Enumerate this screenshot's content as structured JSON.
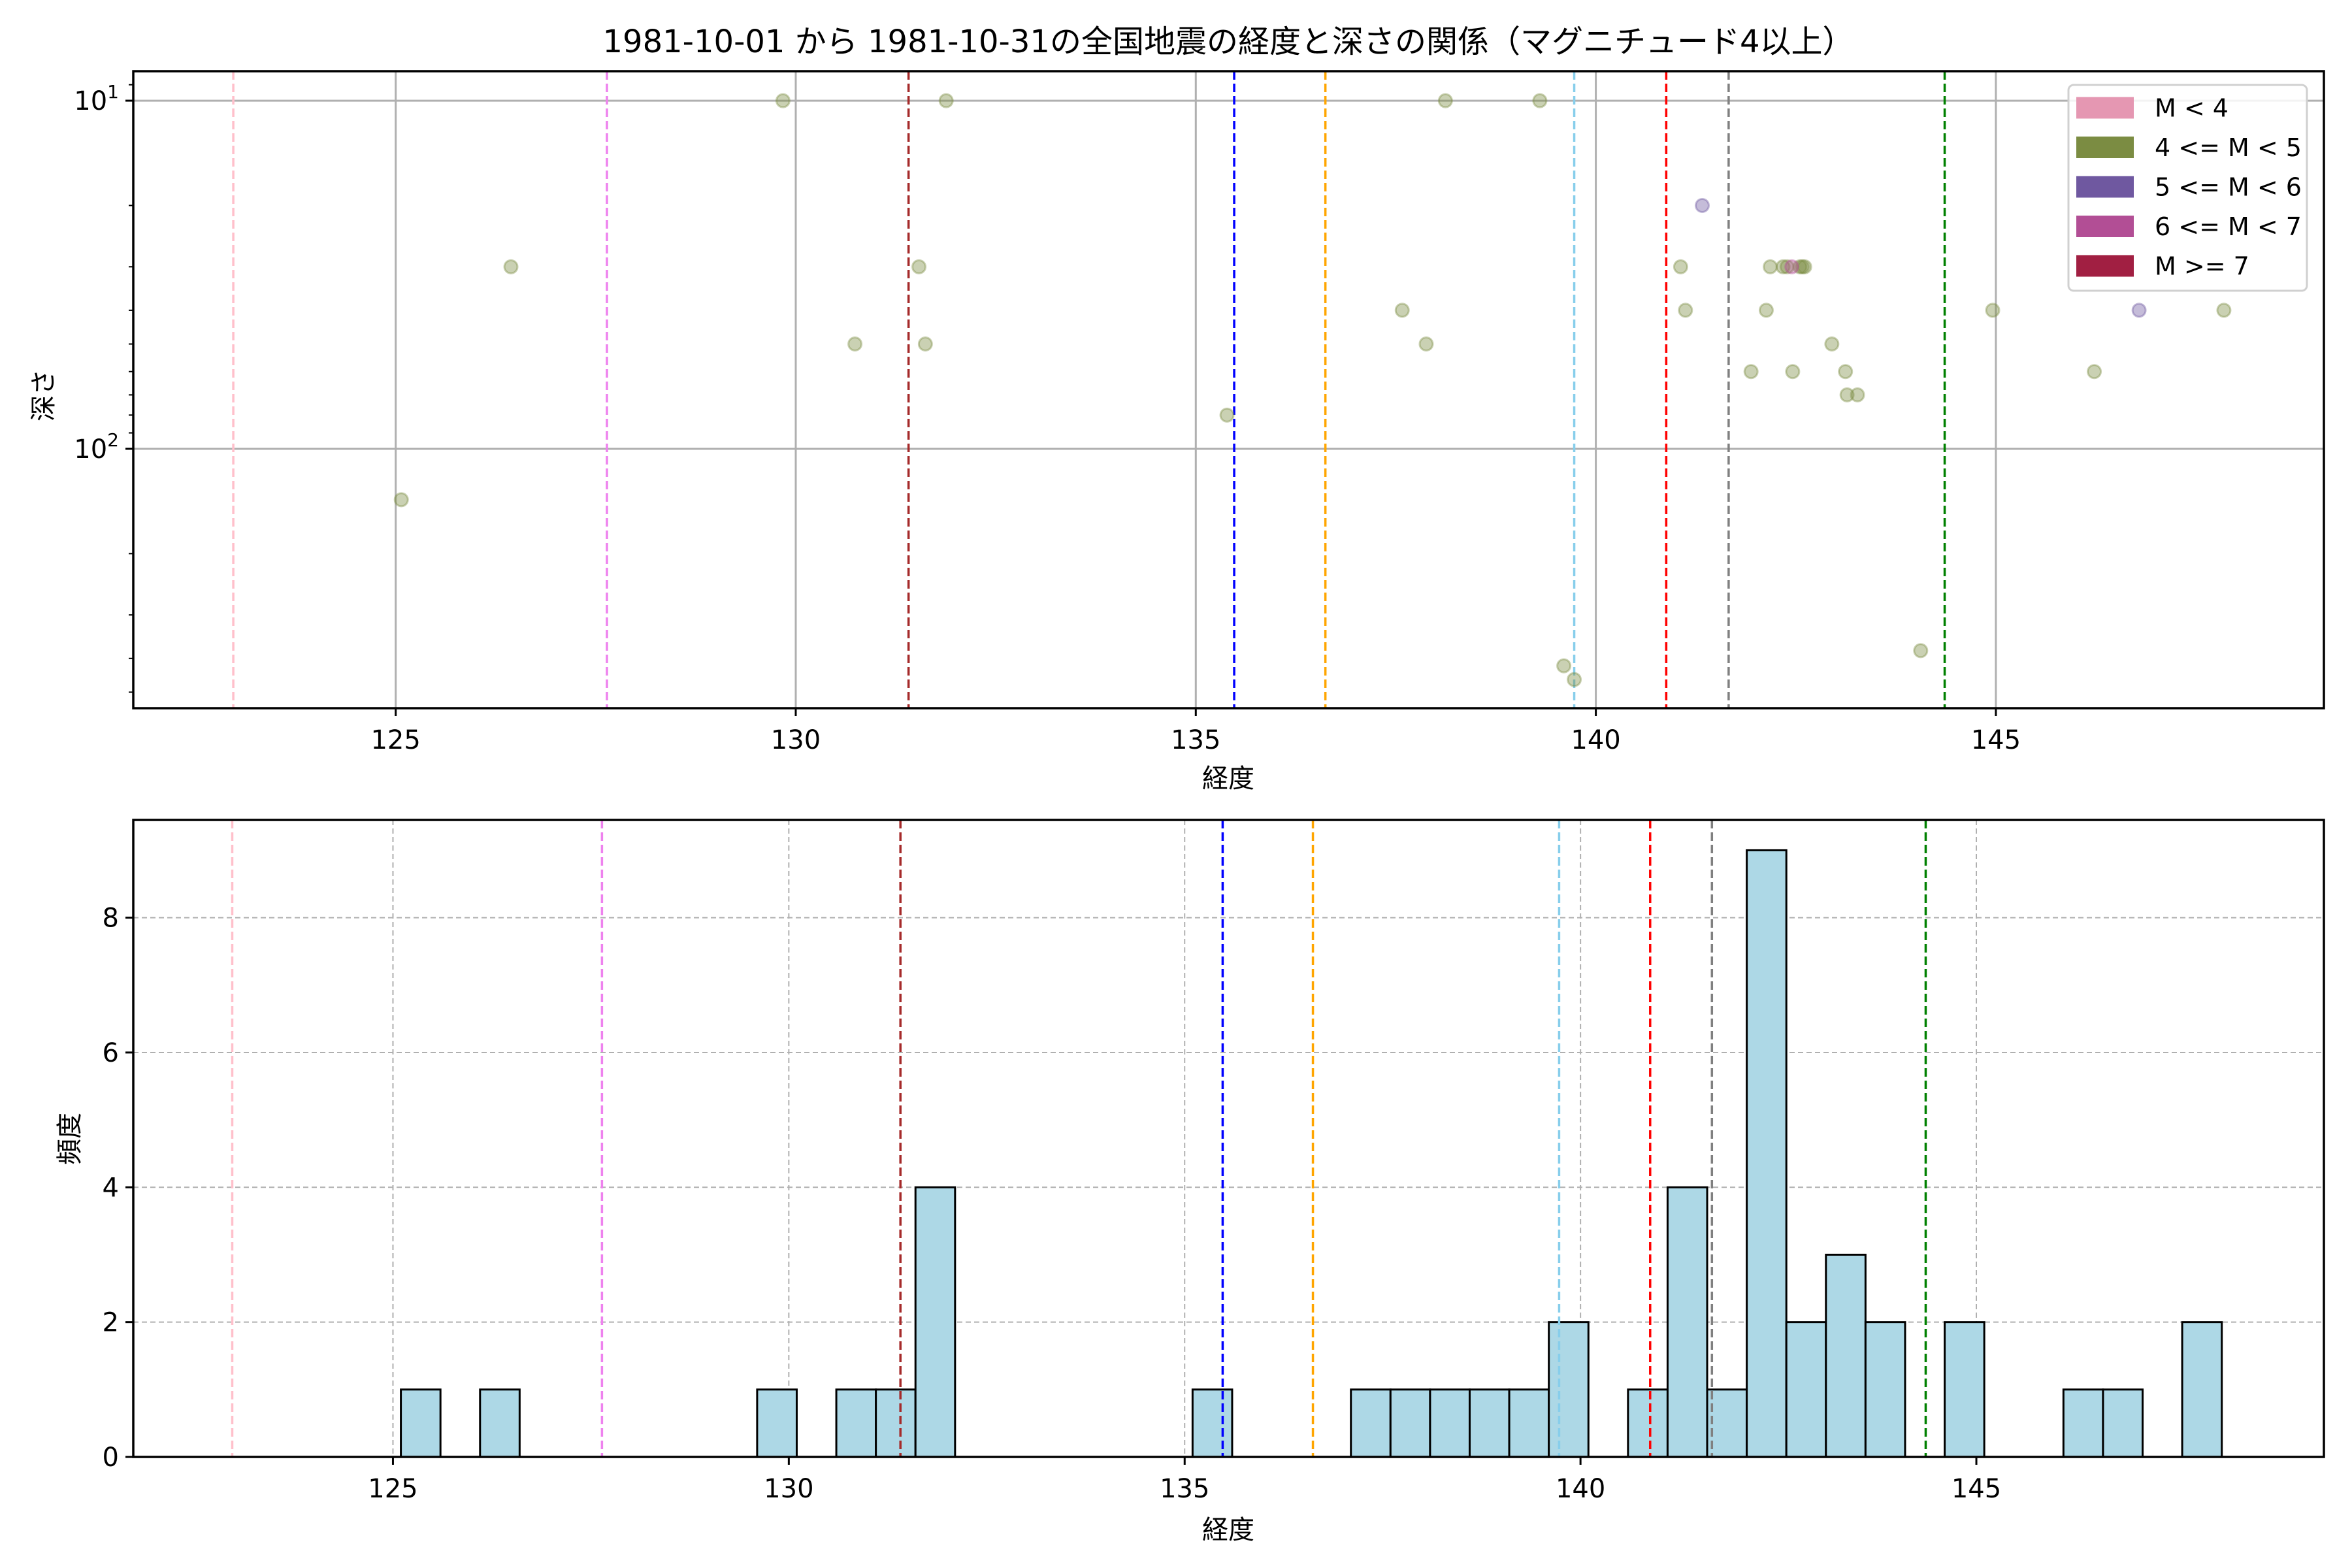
{
  "chart_data": [
    {
      "type": "scatter",
      "title": "1981-10-01 から 1981-10-31の全国地震の経度と深さの関係（マグニチュード4以上）",
      "xlabel": "経度",
      "ylabel": "深さ",
      "xlim": [
        121.72,
        149.1
      ],
      "ylim": [
        556,
        8.23
      ],
      "yscale": "log",
      "y_inverted": true,
      "xticks": [
        125,
        130,
        135,
        140,
        145
      ],
      "xtick_labels": [
        "125",
        "130",
        "135",
        "140",
        "145"
      ],
      "yticks": [
        10,
        100
      ],
      "ytick_labels": [
        {
          "base": "10",
          "exp": "1"
        },
        {
          "base": "10",
          "exp": "2"
        }
      ],
      "grid": true,
      "legend_position": "top-right",
      "legend": [
        {
          "label": "M < 4",
          "color": "#e597b2"
        },
        {
          "label": "4 <= M < 5",
          "color": "#7b8c42"
        },
        {
          "label": "5 <= M < 6",
          "color": "#6f58a0"
        },
        {
          "label": "6 <= M < 7",
          "color": "#b24e95"
        },
        {
          "label": "M >= 7",
          "color": "#a11f42"
        }
      ],
      "points": [
        {
          "lon": 125.07,
          "depth": 140,
          "cat": 1
        },
        {
          "lon": 126.44,
          "depth": 30,
          "cat": 1
        },
        {
          "lon": 129.84,
          "depth": 10,
          "cat": 1
        },
        {
          "lon": 130.74,
          "depth": 50,
          "cat": 1
        },
        {
          "lon": 131.54,
          "depth": 30,
          "cat": 1
        },
        {
          "lon": 131.62,
          "depth": 50,
          "cat": 1
        },
        {
          "lon": 131.88,
          "depth": 10,
          "cat": 1
        },
        {
          "lon": 135.39,
          "depth": 80,
          "cat": 1
        },
        {
          "lon": 137.58,
          "depth": 40,
          "cat": 1
        },
        {
          "lon": 137.88,
          "depth": 50,
          "cat": 1
        },
        {
          "lon": 138.12,
          "depth": 10,
          "cat": 1
        },
        {
          "lon": 139.3,
          "depth": 10,
          "cat": 1
        },
        {
          "lon": 139.6,
          "depth": 420,
          "cat": 1
        },
        {
          "lon": 139.73,
          "depth": 460,
          "cat": 1
        },
        {
          "lon": 141.06,
          "depth": 30,
          "cat": 1
        },
        {
          "lon": 141.12,
          "depth": 40,
          "cat": 1
        },
        {
          "lon": 141.33,
          "depth": 20,
          "cat": 2
        },
        {
          "lon": 141.94,
          "depth": 60,
          "cat": 1
        },
        {
          "lon": 142.13,
          "depth": 40,
          "cat": 1
        },
        {
          "lon": 142.18,
          "depth": 30,
          "cat": 1
        },
        {
          "lon": 142.34,
          "depth": 30,
          "cat": 1
        },
        {
          "lon": 142.39,
          "depth": 30,
          "cat": 1
        },
        {
          "lon": 142.55,
          "depth": 30,
          "cat": 1
        },
        {
          "lon": 142.58,
          "depth": 30,
          "cat": 1
        },
        {
          "lon": 142.61,
          "depth": 30,
          "cat": 1
        },
        {
          "lon": 142.45,
          "depth": 30,
          "cat": 3
        },
        {
          "lon": 142.46,
          "depth": 60,
          "cat": 1
        },
        {
          "lon": 142.95,
          "depth": 50,
          "cat": 1
        },
        {
          "lon": 143.12,
          "depth": 60,
          "cat": 1
        },
        {
          "lon": 143.14,
          "depth": 70,
          "cat": 1
        },
        {
          "lon": 143.27,
          "depth": 70,
          "cat": 1
        },
        {
          "lon": 144.06,
          "depth": 380,
          "cat": 1
        },
        {
          "lon": 144.96,
          "depth": 40,
          "cat": 1
        },
        {
          "lon": 146.23,
          "depth": 60,
          "cat": 1
        },
        {
          "lon": 146.79,
          "depth": 40,
          "cat": 2
        },
        {
          "lon": 147.85,
          "depth": 40,
          "cat": 1
        }
      ],
      "vlines": [
        {
          "x": 122.97,
          "color": "#ffc0cb"
        },
        {
          "x": 127.64,
          "color": "#ee82ee"
        },
        {
          "x": 131.41,
          "color": "#a52a2a"
        },
        {
          "x": 135.48,
          "color": "#0000ff"
        },
        {
          "x": 136.62,
          "color": "#ffa500"
        },
        {
          "x": 139.73,
          "color": "#87ceeb"
        },
        {
          "x": 140.88,
          "color": "#ff0000"
        },
        {
          "x": 141.66,
          "color": "#808080"
        },
        {
          "x": 144.36,
          "color": "#008000"
        }
      ]
    },
    {
      "type": "bar",
      "subtype": "histogram",
      "xlabel": "経度",
      "ylabel": "頻度",
      "xlim": [
        121.72,
        149.39
      ],
      "ylim": [
        0,
        9.45
      ],
      "xticks": [
        125,
        130,
        135,
        140,
        145
      ],
      "xtick_labels": [
        "125",
        "130",
        "135",
        "140",
        "145"
      ],
      "yticks": [
        0,
        2,
        4,
        6,
        8
      ],
      "ytick_labels": [
        "0",
        "2",
        "4",
        "6",
        "8"
      ],
      "grid": true,
      "bar_color": "#add8e6",
      "bin_start": 125.1,
      "bin_width": 0.5,
      "counts": [
        1,
        0,
        1,
        0,
        0,
        0,
        0,
        0,
        0,
        1,
        0,
        1,
        1,
        4,
        0,
        0,
        0,
        0,
        0,
        0,
        1,
        0,
        0,
        0,
        1,
        1,
        1,
        1,
        1,
        2,
        0,
        1,
        4,
        1,
        9,
        2,
        3,
        2,
        0,
        2,
        0,
        0,
        1,
        1,
        0,
        2
      ],
      "vlines": [
        {
          "x": 122.97,
          "color": "#ffc0cb"
        },
        {
          "x": 127.64,
          "color": "#ee82ee"
        },
        {
          "x": 131.41,
          "color": "#a52a2a"
        },
        {
          "x": 135.48,
          "color": "#0000ff"
        },
        {
          "x": 136.62,
          "color": "#ffa500"
        },
        {
          "x": 139.73,
          "color": "#87ceeb"
        },
        {
          "x": 140.88,
          "color": "#ff0000"
        },
        {
          "x": 141.66,
          "color": "#808080"
        },
        {
          "x": 144.36,
          "color": "#008000"
        }
      ]
    }
  ]
}
